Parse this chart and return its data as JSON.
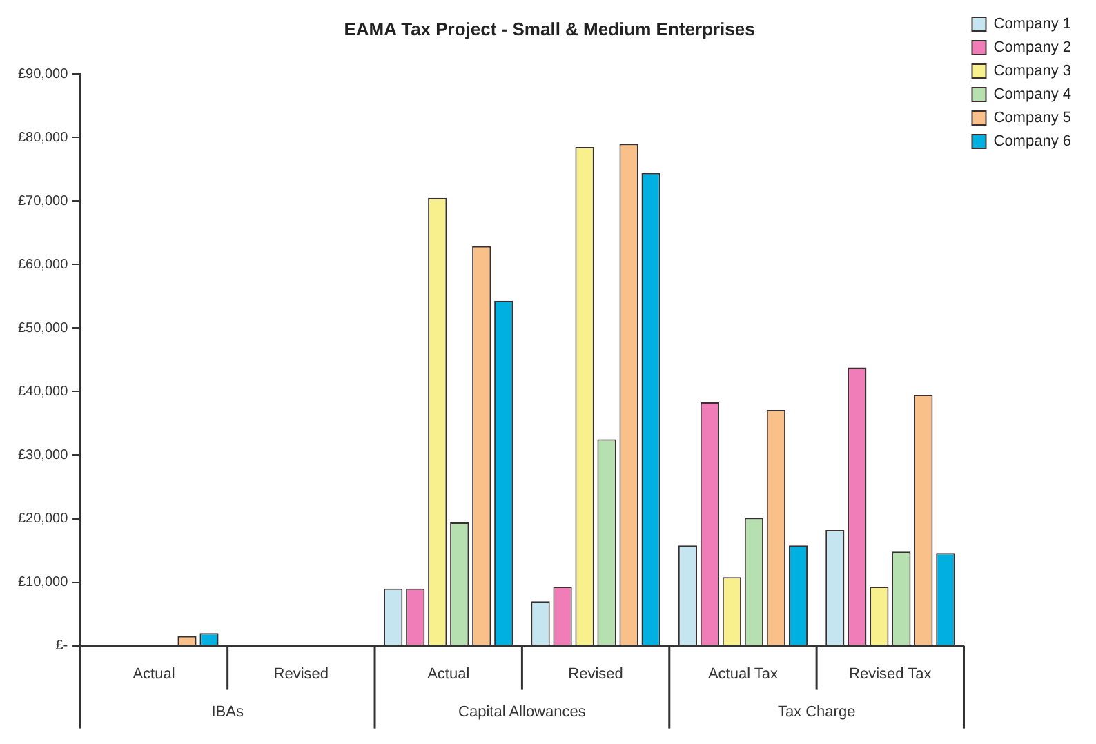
{
  "chart_data": {
    "type": "bar",
    "title": "EAMA Tax Project - Small & Medium Enterprises",
    "categories": [
      "Actual",
      "Revised",
      "Actual",
      "Revised",
      "Actual Tax",
      "Revised Tax"
    ],
    "annotations": [
      "IBAs",
      "Capital Allowances",
      "Tax Charge"
    ],
    "series": [
      {
        "name": "Company 1",
        "color": "#c5e6f0",
        "values": [
          0,
          0,
          9000,
          7000,
          15800,
          18200
        ]
      },
      {
        "name": "Company 2",
        "color": "#f07cb8",
        "values": [
          0,
          0,
          9000,
          9300,
          38300,
          43800
        ]
      },
      {
        "name": "Company 3",
        "color": "#f7f08c",
        "values": [
          0,
          0,
          70500,
          78500,
          10800,
          9300
        ]
      },
      {
        "name": "Company 4",
        "color": "#b6e0b0",
        "values": [
          0,
          0,
          19400,
          32500,
          20100,
          14800
        ]
      },
      {
        "name": "Company 5",
        "color": "#f9c08a",
        "values": [
          1500,
          0,
          62900,
          79000,
          37100,
          39500
        ]
      },
      {
        "name": "Company 6",
        "color": "#00b0e0",
        "values": [
          2000,
          0,
          54300,
          74400,
          15800,
          14600
        ]
      }
    ],
    "ylim": [
      0,
      90000
    ],
    "yticks": [
      {
        "value": 0,
        "label": "£-"
      },
      {
        "value": 10000,
        "label": "£10,000"
      },
      {
        "value": 20000,
        "label": "£20,000"
      },
      {
        "value": 30000,
        "label": "£30,000"
      },
      {
        "value": 40000,
        "label": "£40,000"
      },
      {
        "value": 50000,
        "label": "£50,000"
      },
      {
        "value": 60000,
        "label": "£60,000"
      },
      {
        "value": 70000,
        "label": "£70,000"
      },
      {
        "value": 80000,
        "label": "£80,000"
      },
      {
        "value": 90000,
        "label": "£90,000"
      }
    ],
    "grid": false,
    "legend": "top right"
  }
}
